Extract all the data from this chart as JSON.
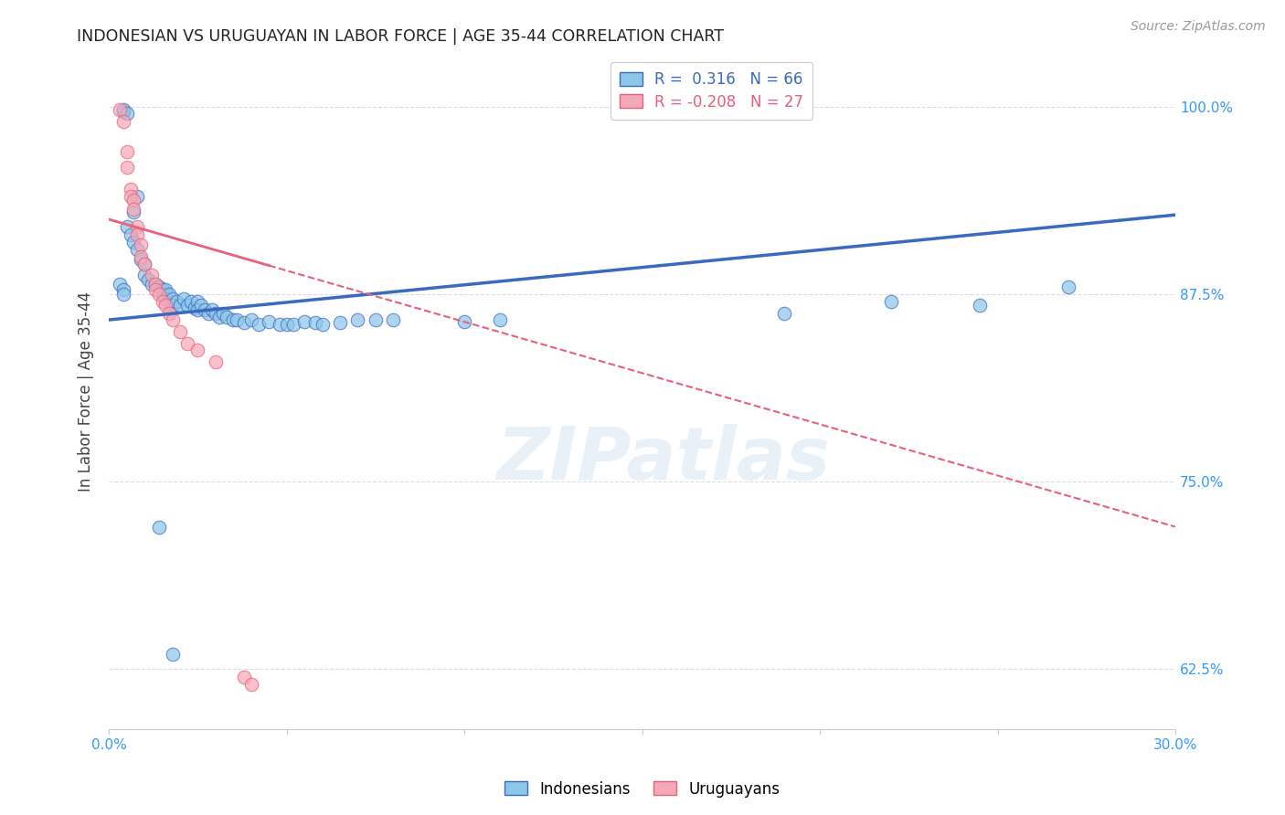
{
  "title": "INDONESIAN VS URUGUAYAN IN LABOR FORCE | AGE 35-44 CORRELATION CHART",
  "source": "Source: ZipAtlas.com",
  "ylabel": "In Labor Force | Age 35-44",
  "xlim": [
    0.0,
    0.3
  ],
  "ylim": [
    0.585,
    1.035
  ],
  "xtick_labels": [
    "0.0%",
    "",
    "",
    "",
    "",
    "",
    "30.0%"
  ],
  "xtick_vals": [
    0.0,
    0.05,
    0.1,
    0.15,
    0.2,
    0.25,
    0.3
  ],
  "ytick_labels": [
    "62.5%",
    "75.0%",
    "87.5%",
    "100.0%"
  ],
  "ytick_vals": [
    0.625,
    0.75,
    0.875,
    1.0
  ],
  "legend_blue_R": "0.316",
  "legend_blue_N": "66",
  "legend_pink_R": "-0.208",
  "legend_pink_N": "27",
  "blue_color": "#8ec6e8",
  "pink_color": "#f4a8b8",
  "blue_line_color": "#3a6abf",
  "pink_line_color": "#e8607a",
  "blue_scatter": [
    [
      0.004,
      0.997
    ],
    [
      0.004,
      0.998
    ],
    [
      0.005,
      0.996
    ],
    [
      0.007,
      0.93
    ],
    [
      0.008,
      0.94
    ],
    [
      0.003,
      0.882
    ],
    [
      0.004,
      0.878
    ],
    [
      0.004,
      0.875
    ],
    [
      0.005,
      0.92
    ],
    [
      0.006,
      0.915
    ],
    [
      0.007,
      0.91
    ],
    [
      0.008,
      0.905
    ],
    [
      0.009,
      0.898
    ],
    [
      0.01,
      0.895
    ],
    [
      0.01,
      0.888
    ],
    [
      0.011,
      0.885
    ],
    [
      0.012,
      0.882
    ],
    [
      0.013,
      0.882
    ],
    [
      0.014,
      0.88
    ],
    [
      0.015,
      0.878
    ],
    [
      0.015,
      0.875
    ],
    [
      0.016,
      0.878
    ],
    [
      0.016,
      0.872
    ],
    [
      0.017,
      0.875
    ],
    [
      0.018,
      0.872
    ],
    [
      0.018,
      0.868
    ],
    [
      0.019,
      0.87
    ],
    [
      0.02,
      0.868
    ],
    [
      0.021,
      0.872
    ],
    [
      0.022,
      0.868
    ],
    [
      0.023,
      0.87
    ],
    [
      0.024,
      0.866
    ],
    [
      0.025,
      0.87
    ],
    [
      0.025,
      0.865
    ],
    [
      0.026,
      0.868
    ],
    [
      0.027,
      0.865
    ],
    [
      0.028,
      0.862
    ],
    [
      0.029,
      0.865
    ],
    [
      0.03,
      0.862
    ],
    [
      0.031,
      0.86
    ],
    [
      0.032,
      0.862
    ],
    [
      0.033,
      0.86
    ],
    [
      0.035,
      0.858
    ],
    [
      0.036,
      0.858
    ],
    [
      0.038,
      0.856
    ],
    [
      0.04,
      0.858
    ],
    [
      0.042,
      0.855
    ],
    [
      0.045,
      0.857
    ],
    [
      0.048,
      0.855
    ],
    [
      0.05,
      0.855
    ],
    [
      0.052,
      0.855
    ],
    [
      0.055,
      0.857
    ],
    [
      0.058,
      0.856
    ],
    [
      0.06,
      0.855
    ],
    [
      0.065,
      0.856
    ],
    [
      0.07,
      0.858
    ],
    [
      0.075,
      0.858
    ],
    [
      0.08,
      0.858
    ],
    [
      0.1,
      0.857
    ],
    [
      0.11,
      0.858
    ],
    [
      0.19,
      0.862
    ],
    [
      0.22,
      0.87
    ],
    [
      0.245,
      0.868
    ],
    [
      0.27,
      0.88
    ],
    [
      0.014,
      0.72
    ],
    [
      0.018,
      0.635
    ]
  ],
  "pink_scatter": [
    [
      0.003,
      0.998
    ],
    [
      0.004,
      0.99
    ],
    [
      0.005,
      0.97
    ],
    [
      0.005,
      0.96
    ],
    [
      0.006,
      0.945
    ],
    [
      0.006,
      0.94
    ],
    [
      0.007,
      0.938
    ],
    [
      0.007,
      0.932
    ],
    [
      0.008,
      0.92
    ],
    [
      0.008,
      0.915
    ],
    [
      0.009,
      0.908
    ],
    [
      0.009,
      0.9
    ],
    [
      0.01,
      0.895
    ],
    [
      0.012,
      0.888
    ],
    [
      0.013,
      0.882
    ],
    [
      0.013,
      0.878
    ],
    [
      0.014,
      0.875
    ],
    [
      0.015,
      0.87
    ],
    [
      0.016,
      0.868
    ],
    [
      0.017,
      0.862
    ],
    [
      0.018,
      0.858
    ],
    [
      0.02,
      0.85
    ],
    [
      0.022,
      0.842
    ],
    [
      0.025,
      0.838
    ],
    [
      0.03,
      0.83
    ],
    [
      0.038,
      0.62
    ],
    [
      0.04,
      0.615
    ]
  ],
  "background_color": "#ffffff",
  "grid_color": "#dddddd",
  "tick_color": "#3399ff",
  "watermark_text": "ZIPatlas",
  "watermark_color": "#cce0f0",
  "watermark_alpha": 0.45
}
